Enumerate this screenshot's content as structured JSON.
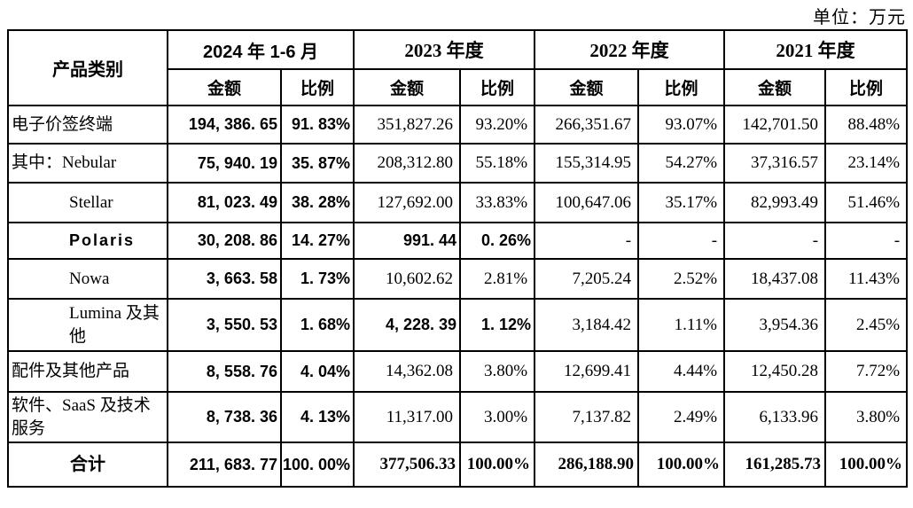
{
  "unit_label": "单位：万元",
  "table": {
    "product_header": "产品类别",
    "amount_header": "金额",
    "ratio_header": "比例",
    "periods": [
      "2024 年 1-6 月",
      "2023 年度",
      "2022 年度",
      "2021 年度"
    ],
    "rows": [
      {
        "label": "电子价签终端",
        "label_style": "left",
        "cells": [
          {
            "t": "194, 386. 65",
            "s": "h"
          },
          {
            "t": "91. 83%",
            "s": "h"
          },
          {
            "t": "351,827.26",
            "s": "r"
          },
          {
            "t": "93.20%",
            "s": "r"
          },
          {
            "t": "266,351.67",
            "s": "r"
          },
          {
            "t": "93.07%",
            "s": "r"
          },
          {
            "t": "142,701.50",
            "s": "r"
          },
          {
            "t": "88.48%",
            "s": "r"
          }
        ]
      },
      {
        "label": "其中：Nebular",
        "label_style": "left",
        "cells": [
          {
            "t": "75, 940. 19",
            "s": "h"
          },
          {
            "t": "35. 87%",
            "s": "h"
          },
          {
            "t": "208,312.80",
            "s": "r"
          },
          {
            "t": "55.18%",
            "s": "r"
          },
          {
            "t": "155,314.95",
            "s": "r"
          },
          {
            "t": "54.27%",
            "s": "r"
          },
          {
            "t": "37,316.57",
            "s": "r"
          },
          {
            "t": "23.14%",
            "s": "r"
          }
        ]
      },
      {
        "label": "Stellar",
        "label_style": "indent",
        "cells": [
          {
            "t": "81, 023. 49",
            "s": "h"
          },
          {
            "t": "38. 28%",
            "s": "h"
          },
          {
            "t": "127,692.00",
            "s": "r"
          },
          {
            "t": "33.83%",
            "s": "r"
          },
          {
            "t": "100,647.06",
            "s": "r"
          },
          {
            "t": "35.17%",
            "s": "r"
          },
          {
            "t": "82,993.49",
            "s": "r"
          },
          {
            "t": "51.46%",
            "s": "r"
          }
        ]
      },
      {
        "label": "Polaris",
        "label_style": "indent-bold",
        "cells": [
          {
            "t": "30, 208. 86",
            "s": "h"
          },
          {
            "t": "14. 27%",
            "s": "h"
          },
          {
            "t": "991. 44",
            "s": "h"
          },
          {
            "t": "0. 26%",
            "s": "h"
          },
          {
            "t": "-",
            "s": "r"
          },
          {
            "t": "-",
            "s": "r"
          },
          {
            "t": "-",
            "s": "r"
          },
          {
            "t": "-",
            "s": "r"
          }
        ]
      },
      {
        "label": "Nowa",
        "label_style": "indent",
        "cells": [
          {
            "t": "3, 663. 58",
            "s": "h"
          },
          {
            "t": "1. 73%",
            "s": "h"
          },
          {
            "t": "10,602.62",
            "s": "r"
          },
          {
            "t": "2.81%",
            "s": "r"
          },
          {
            "t": "7,205.24",
            "s": "r"
          },
          {
            "t": "2.52%",
            "s": "r"
          },
          {
            "t": "18,437.08",
            "s": "r"
          },
          {
            "t": "11.43%",
            "s": "r"
          }
        ]
      },
      {
        "label": "Lumina 及其他",
        "label_style": "indent",
        "cells": [
          {
            "t": "3, 550. 53",
            "s": "h"
          },
          {
            "t": "1. 68%",
            "s": "h"
          },
          {
            "t": "4, 228. 39",
            "s": "h"
          },
          {
            "t": "1. 12%",
            "s": "h"
          },
          {
            "t": "3,184.42",
            "s": "r"
          },
          {
            "t": "1.11%",
            "s": "r"
          },
          {
            "t": "3,954.36",
            "s": "r"
          },
          {
            "t": "2.45%",
            "s": "r"
          }
        ]
      },
      {
        "label": "配件及其他产品",
        "label_style": "left",
        "cells": [
          {
            "t": "8, 558. 76",
            "s": "h"
          },
          {
            "t": "4. 04%",
            "s": "h"
          },
          {
            "t": "14,362.08",
            "s": "r"
          },
          {
            "t": "3.80%",
            "s": "r"
          },
          {
            "t": "12,699.41",
            "s": "r"
          },
          {
            "t": "4.44%",
            "s": "r"
          },
          {
            "t": "12,450.28",
            "s": "r"
          },
          {
            "t": "7.72%",
            "s": "r"
          }
        ]
      },
      {
        "label": "软件、SaaS 及技术服务",
        "label_style": "left",
        "cells": [
          {
            "t": "8, 738. 36",
            "s": "h"
          },
          {
            "t": "4. 13%",
            "s": "h"
          },
          {
            "t": "11,317.00",
            "s": "r"
          },
          {
            "t": "3.00%",
            "s": "r"
          },
          {
            "t": "7,137.82",
            "s": "r"
          },
          {
            "t": "2.49%",
            "s": "r"
          },
          {
            "t": "6,133.96",
            "s": "r"
          },
          {
            "t": "3.80%",
            "s": "r"
          }
        ]
      },
      {
        "label": "合计",
        "label_style": "center-bold",
        "cells": [
          {
            "t": "211, 683. 77",
            "s": "h"
          },
          {
            "t": "100. 00%",
            "s": "h"
          },
          {
            "t": "377,506.33",
            "s": "sb"
          },
          {
            "t": "100.00%",
            "s": "sb"
          },
          {
            "t": "286,188.90",
            "s": "sb"
          },
          {
            "t": "100.00%",
            "s": "sb"
          },
          {
            "t": "161,285.73",
            "s": "sb"
          },
          {
            "t": "100.00%",
            "s": "sb"
          }
        ]
      }
    ]
  }
}
